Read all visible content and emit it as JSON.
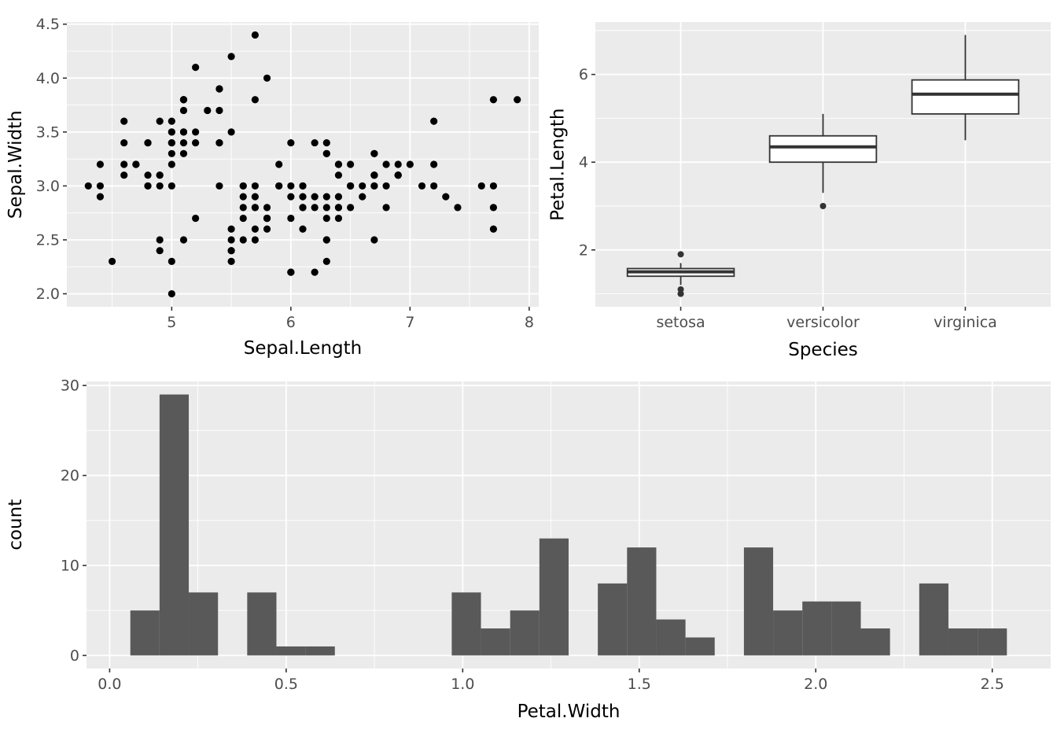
{
  "figure": {
    "background": "#FFFFFF",
    "panel_background": "#EBEBEB",
    "grid_color": "#FFFFFF",
    "axis_text_color": "#4D4D4D",
    "axis_tick_color": "#333333",
    "axis_title_color": "#000000",
    "point_color": "#000000",
    "bar_color": "#595959",
    "box_fill": "#FFFFFF",
    "box_stroke": "#333333"
  },
  "chart_data": [
    {
      "id": "sepal-scatter",
      "type": "scatter",
      "title": "",
      "xlabel": "Sepal.Length",
      "ylabel": "Sepal.Width",
      "xlim": [
        4.12,
        8.08
      ],
      "ylim": [
        1.88,
        4.52
      ],
      "grid": true,
      "x_ticks": [
        {
          "v": 5,
          "label": "5"
        },
        {
          "v": 6,
          "label": "6"
        },
        {
          "v": 7,
          "label": "7"
        },
        {
          "v": 8,
          "label": "8"
        }
      ],
      "y_ticks": [
        {
          "v": 2.0,
          "label": "2.0"
        },
        {
          "v": 2.5,
          "label": "2.5"
        },
        {
          "v": 3.0,
          "label": "3.0"
        },
        {
          "v": 3.5,
          "label": "3.5"
        },
        {
          "v": 4.0,
          "label": "4.0"
        },
        {
          "v": 4.5,
          "label": "4.5"
        }
      ],
      "x_minor": [
        4.5,
        5.5,
        6.5,
        7.5
      ],
      "y_minor": [
        2.25,
        2.75,
        3.25,
        3.75,
        4.25
      ],
      "points": [
        [
          5.1,
          3.5
        ],
        [
          4.9,
          3.0
        ],
        [
          4.7,
          3.2
        ],
        [
          4.6,
          3.1
        ],
        [
          5.0,
          3.6
        ],
        [
          5.4,
          3.9
        ],
        [
          4.6,
          3.4
        ],
        [
          5.0,
          3.4
        ],
        [
          4.4,
          2.9
        ],
        [
          4.9,
          3.1
        ],
        [
          5.4,
          3.7
        ],
        [
          4.8,
          3.4
        ],
        [
          4.8,
          3.0
        ],
        [
          4.3,
          3.0
        ],
        [
          5.8,
          4.0
        ],
        [
          5.7,
          4.4
        ],
        [
          5.4,
          3.9
        ],
        [
          5.1,
          3.5
        ],
        [
          5.7,
          3.8
        ],
        [
          5.1,
          3.8
        ],
        [
          5.4,
          3.4
        ],
        [
          5.1,
          3.7
        ],
        [
          4.6,
          3.6
        ],
        [
          5.1,
          3.3
        ],
        [
          4.8,
          3.4
        ],
        [
          5.0,
          3.0
        ],
        [
          5.0,
          3.4
        ],
        [
          5.2,
          3.5
        ],
        [
          5.2,
          3.4
        ],
        [
          4.7,
          3.2
        ],
        [
          4.8,
          3.1
        ],
        [
          5.4,
          3.4
        ],
        [
          5.2,
          4.1
        ],
        [
          5.5,
          4.2
        ],
        [
          4.9,
          3.1
        ],
        [
          5.0,
          3.2
        ],
        [
          5.5,
          3.5
        ],
        [
          4.9,
          3.6
        ],
        [
          4.4,
          3.0
        ],
        [
          5.1,
          3.4
        ],
        [
          5.0,
          3.5
        ],
        [
          4.5,
          2.3
        ],
        [
          4.4,
          3.2
        ],
        [
          5.0,
          3.5
        ],
        [
          5.1,
          3.8
        ],
        [
          4.8,
          3.0
        ],
        [
          5.1,
          3.8
        ],
        [
          4.6,
          3.2
        ],
        [
          5.3,
          3.7
        ],
        [
          5.0,
          3.3
        ],
        [
          7.0,
          3.2
        ],
        [
          6.4,
          3.2
        ],
        [
          6.9,
          3.1
        ],
        [
          5.5,
          2.3
        ],
        [
          6.5,
          2.8
        ],
        [
          5.7,
          2.8
        ],
        [
          6.3,
          3.3
        ],
        [
          4.9,
          2.4
        ],
        [
          6.6,
          2.9
        ],
        [
          5.2,
          2.7
        ],
        [
          5.0,
          2.0
        ],
        [
          5.9,
          3.0
        ],
        [
          6.0,
          2.2
        ],
        [
          6.1,
          2.9
        ],
        [
          5.6,
          2.9
        ],
        [
          6.7,
          3.1
        ],
        [
          5.6,
          3.0
        ],
        [
          5.8,
          2.7
        ],
        [
          6.2,
          2.2
        ],
        [
          5.6,
          2.5
        ],
        [
          5.9,
          3.2
        ],
        [
          6.1,
          2.8
        ],
        [
          6.3,
          2.5
        ],
        [
          6.1,
          2.8
        ],
        [
          6.4,
          2.9
        ],
        [
          6.6,
          3.0
        ],
        [
          6.8,
          2.8
        ],
        [
          6.7,
          3.0
        ],
        [
          6.0,
          2.9
        ],
        [
          5.7,
          2.6
        ],
        [
          5.5,
          2.4
        ],
        [
          5.5,
          2.4
        ],
        [
          5.8,
          2.7
        ],
        [
          6.0,
          2.7
        ],
        [
          5.4,
          3.0
        ],
        [
          6.0,
          3.4
        ],
        [
          6.7,
          3.1
        ],
        [
          6.3,
          2.3
        ],
        [
          5.6,
          3.0
        ],
        [
          5.5,
          2.5
        ],
        [
          5.5,
          2.6
        ],
        [
          6.1,
          3.0
        ],
        [
          5.8,
          2.6
        ],
        [
          5.0,
          2.3
        ],
        [
          5.6,
          2.7
        ],
        [
          5.7,
          3.0
        ],
        [
          5.7,
          2.9
        ],
        [
          6.2,
          2.9
        ],
        [
          5.1,
          2.5
        ],
        [
          5.7,
          2.8
        ],
        [
          6.3,
          3.3
        ],
        [
          5.8,
          2.7
        ],
        [
          7.1,
          3.0
        ],
        [
          6.3,
          2.9
        ],
        [
          6.5,
          3.0
        ],
        [
          7.6,
          3.0
        ],
        [
          4.9,
          2.5
        ],
        [
          7.3,
          2.9
        ],
        [
          6.7,
          2.5
        ],
        [
          7.2,
          3.6
        ],
        [
          6.5,
          3.2
        ],
        [
          6.4,
          2.7
        ],
        [
          6.8,
          3.0
        ],
        [
          5.7,
          2.5
        ],
        [
          5.8,
          2.8
        ],
        [
          6.4,
          3.2
        ],
        [
          6.5,
          3.0
        ],
        [
          7.7,
          3.8
        ],
        [
          7.7,
          2.6
        ],
        [
          6.0,
          2.2
        ],
        [
          6.9,
          3.2
        ],
        [
          5.6,
          2.8
        ],
        [
          7.7,
          2.8
        ],
        [
          6.3,
          2.7
        ],
        [
          6.7,
          3.3
        ],
        [
          7.2,
          3.2
        ],
        [
          6.2,
          2.8
        ],
        [
          6.1,
          3.0
        ],
        [
          6.4,
          2.8
        ],
        [
          7.2,
          3.0
        ],
        [
          7.4,
          2.8
        ],
        [
          7.9,
          3.8
        ],
        [
          6.4,
          2.8
        ],
        [
          6.3,
          2.8
        ],
        [
          6.1,
          2.6
        ],
        [
          7.7,
          3.0
        ],
        [
          6.3,
          3.4
        ],
        [
          6.4,
          3.1
        ],
        [
          6.0,
          3.0
        ],
        [
          6.9,
          3.1
        ],
        [
          6.7,
          3.1
        ],
        [
          6.9,
          3.1
        ],
        [
          5.8,
          2.7
        ],
        [
          6.8,
          3.2
        ],
        [
          6.7,
          3.3
        ],
        [
          6.7,
          3.0
        ],
        [
          6.3,
          2.5
        ],
        [
          6.5,
          3.0
        ],
        [
          6.2,
          3.4
        ],
        [
          5.9,
          3.0
        ]
      ]
    },
    {
      "id": "petal-length-boxplot",
      "type": "boxplot",
      "title": "",
      "xlabel": "Species",
      "ylabel": "Petal.Length",
      "categories": [
        "setosa",
        "versicolor",
        "virginica"
      ],
      "x_domain": [
        0.4,
        3.6
      ],
      "ylim": [
        0.705,
        7.195
      ],
      "grid": true,
      "box_width_units": 0.75,
      "y_ticks": [
        {
          "v": 2,
          "label": "2"
        },
        {
          "v": 4,
          "label": "4"
        },
        {
          "v": 6,
          "label": "6"
        }
      ],
      "y_minor": [
        1,
        3,
        5,
        7
      ],
      "boxes": [
        {
          "category": "setosa",
          "lower_whisker": 1.2,
          "q1": 1.4,
          "median": 1.5,
          "q3": 1.575,
          "upper_whisker": 1.7,
          "outliers": [
            1.0,
            1.0,
            1.1,
            1.9
          ]
        },
        {
          "category": "versicolor",
          "lower_whisker": 3.3,
          "q1": 4.0,
          "median": 4.35,
          "q3": 4.6,
          "upper_whisker": 5.1,
          "outliers": [
            3.0
          ]
        },
        {
          "category": "virginica",
          "lower_whisker": 4.5,
          "q1": 5.1,
          "median": 5.55,
          "q3": 5.875,
          "upper_whisker": 6.9,
          "outliers": []
        }
      ]
    },
    {
      "id": "petal-width-histogram",
      "type": "bar",
      "subtype": "histogram",
      "title": "",
      "xlabel": "Petal.Width",
      "ylabel": "count",
      "bin_start": 0.0586207,
      "bin_width": 0.0827586,
      "counts": [
        5,
        29,
        7,
        0,
        7,
        1,
        1,
        0,
        0,
        0,
        0,
        7,
        3,
        5,
        13,
        0,
        8,
        12,
        4,
        2,
        0,
        12,
        5,
        6,
        6,
        3,
        0,
        8,
        3,
        3
      ],
      "xlim": [
        -0.0655,
        2.6655
      ],
      "ylim": [
        -1.45,
        30.45
      ],
      "grid": true,
      "x_ticks": [
        {
          "v": 0.0,
          "label": "0.0"
        },
        {
          "v": 0.5,
          "label": "0.5"
        },
        {
          "v": 1.0,
          "label": "1.0"
        },
        {
          "v": 1.5,
          "label": "1.5"
        },
        {
          "v": 2.0,
          "label": "2.0"
        },
        {
          "v": 2.5,
          "label": "2.5"
        }
      ],
      "y_ticks": [
        {
          "v": 0,
          "label": "0"
        },
        {
          "v": 10,
          "label": "10"
        },
        {
          "v": 20,
          "label": "20"
        },
        {
          "v": 30,
          "label": "30"
        }
      ],
      "x_minor": [
        0.25,
        0.75,
        1.25,
        1.75,
        2.25
      ],
      "y_minor": [
        5,
        15,
        25
      ]
    }
  ]
}
